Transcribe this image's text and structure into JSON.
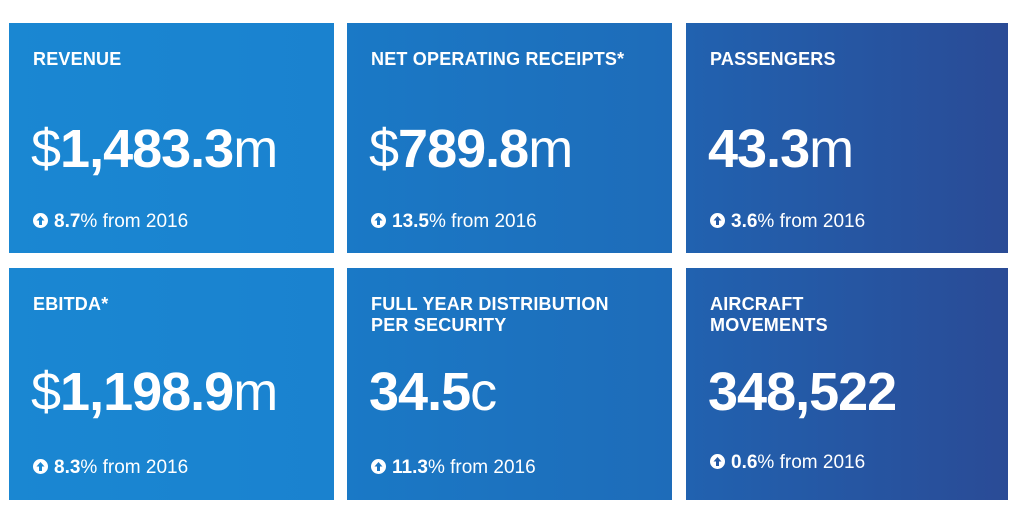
{
  "cards": [
    {
      "title": "REVENUE",
      "prefix": "$",
      "number": "1,483.3",
      "suffix": "m",
      "change": "8.7",
      "change_unit": "%",
      "change_text": " from 2016",
      "change_color": "#1a87d2"
    },
    {
      "title": "NET OPERATING RECEIPTS*",
      "prefix": "$",
      "number": "789.8",
      "suffix": "m",
      "change": "13.5",
      "change_unit": "%",
      "change_text": " from 2016",
      "change_color": "#1b76c3"
    },
    {
      "title": "PASSENGERS",
      "prefix": "",
      "number": "43.3",
      "suffix": "m",
      "change": "3.6",
      "change_unit": "%",
      "change_text": " from 2016",
      "change_color": "#2458a3"
    },
    {
      "title": "EBITDA*",
      "prefix": "$",
      "number": "1,198.9",
      "suffix": "m",
      "change": "8.3",
      "change_unit": "%",
      "change_text": " from 2016",
      "change_color": "#1a87d2"
    },
    {
      "title": "FULL YEAR DISTRIBUTION\nPER SECURITY",
      "prefix": "",
      "number": "34.5",
      "suffix": "c",
      "change": "11.3",
      "change_unit": "%",
      "change_text": " from 2016",
      "change_color": "#1b76c3"
    },
    {
      "title": "AIRCRAFT\nMOVEMENTS",
      "prefix": "",
      "number": "348,522",
      "suffix": "",
      "change": "0.6",
      "change_unit": "%",
      "change_text": " from 2016",
      "change_color": "#2458a3"
    }
  ],
  "icons": {
    "change_indicator": "up-arrow-circle-icon"
  }
}
